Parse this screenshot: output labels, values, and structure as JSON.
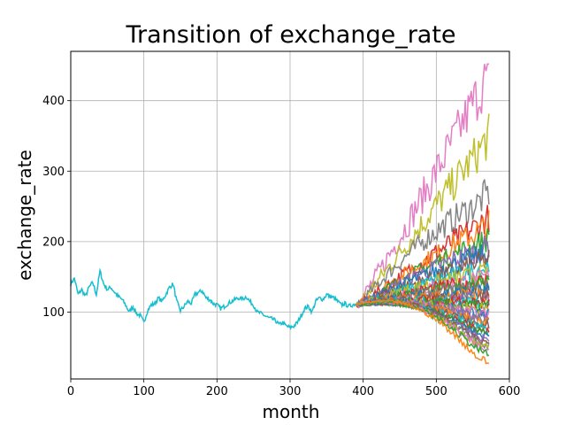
{
  "chart_data": {
    "type": "line",
    "title": "Transition of exchange_rate",
    "xlabel": "month",
    "ylabel": "exchange_rate",
    "xlim": [
      0,
      600
    ],
    "ylim": [
      5,
      470
    ],
    "x_ticks": [
      "0",
      "100",
      "200",
      "300",
      "400",
      "500",
      "600"
    ],
    "y_ticks": [
      "100",
      "200",
      "300",
      "400"
    ],
    "grid": true,
    "history": {
      "color": "#17becf",
      "x": [
        0,
        5,
        10,
        15,
        20,
        25,
        30,
        35,
        40,
        45,
        50,
        55,
        60,
        65,
        70,
        75,
        80,
        85,
        90,
        95,
        100,
        105,
        110,
        115,
        120,
        125,
        130,
        135,
        140,
        145,
        150,
        155,
        160,
        165,
        170,
        175,
        180,
        185,
        190,
        195,
        200,
        205,
        210,
        215,
        220,
        225,
        230,
        235,
        240,
        245,
        250,
        255,
        260,
        265,
        270,
        275,
        280,
        285,
        290,
        295,
        300,
        305,
        310,
        315,
        320,
        325,
        330,
        335,
        340,
        345,
        350,
        355,
        360,
        365,
        370,
        375,
        380,
        385,
        390
      ],
      "y": [
        140,
        148,
        125,
        132,
        122,
        135,
        142,
        125,
        158,
        140,
        132,
        135,
        128,
        122,
        118,
        110,
        100,
        108,
        98,
        95,
        85,
        102,
        110,
        112,
        120,
        115,
        125,
        135,
        140,
        115,
        102,
        108,
        115,
        112,
        125,
        128,
        130,
        120,
        118,
        112,
        110,
        105,
        108,
        112,
        115,
        118,
        120,
        118,
        122,
        115,
        110,
        100,
        98,
        95,
        92,
        90,
        88,
        82,
        85,
        80,
        78,
        80,
        85,
        95,
        105,
        108,
        100,
        115,
        120,
        118,
        125,
        122,
        120,
        115,
        110,
        112,
        108,
        110,
        112
      ]
    },
    "forecast": {
      "start_x": 390,
      "end_x": 572,
      "start_y": 110,
      "paths": [
        {
          "color": "#e377c2",
          "end": 440,
          "peak": 450
        },
        {
          "color": "#bcbd22",
          "end": 350,
          "peak": 365
        },
        {
          "color": "#7f7f7f",
          "end": 270,
          "peak": 305
        },
        {
          "color": "#d62728",
          "end": 235,
          "peak": 245
        },
        {
          "color": "#ff7f0e",
          "end": 225,
          "peak": 240
        },
        {
          "color": "#2ca02c",
          "end": 205,
          "peak": 220
        },
        {
          "color": "#9467bd",
          "end": 195,
          "peak": 210
        },
        {
          "color": "#1f77b4",
          "end": 185,
          "peak": 200
        },
        {
          "color": "#8c564b",
          "end": 175,
          "peak": 185
        },
        {
          "color": "#17becf",
          "end": 165,
          "peak": 175
        },
        {
          "color": "#bcbd22",
          "end": 158,
          "peak": 170
        },
        {
          "color": "#e377c2",
          "end": 150,
          "peak": 160
        },
        {
          "color": "#d62728",
          "end": 145,
          "peak": 155
        },
        {
          "color": "#2ca02c",
          "end": 140,
          "peak": 150
        },
        {
          "color": "#7f7f7f",
          "end": 135,
          "peak": 145
        },
        {
          "color": "#1f77b4",
          "end": 130,
          "peak": 140
        },
        {
          "color": "#ff7f0e",
          "end": 125,
          "peak": 135
        },
        {
          "color": "#9467bd",
          "end": 120,
          "peak": 130
        },
        {
          "color": "#8c564b",
          "end": 118,
          "peak": 128
        },
        {
          "color": "#17becf",
          "end": 115,
          "peak": 125
        },
        {
          "color": "#d62728",
          "end": 112,
          "peak": 122
        },
        {
          "color": "#2ca02c",
          "end": 108,
          "peak": 118
        },
        {
          "color": "#bcbd22",
          "end": 105,
          "peak": 115
        },
        {
          "color": "#1f77b4",
          "end": 100,
          "peak": 112
        },
        {
          "color": "#e377c2",
          "end": 96,
          "peak": 110
        },
        {
          "color": "#9467bd",
          "end": 92,
          "peak": 108
        },
        {
          "color": "#7f7f7f",
          "end": 88,
          "peak": 106
        },
        {
          "color": "#ff7f0e",
          "end": 84,
          "peak": 104
        },
        {
          "color": "#8c564b",
          "end": 80,
          "peak": 102
        },
        {
          "color": "#17becf",
          "end": 76,
          "peak": 100
        },
        {
          "color": "#d62728",
          "end": 72,
          "peak": 98
        },
        {
          "color": "#2ca02c",
          "end": 68,
          "peak": 96
        },
        {
          "color": "#1f77b4",
          "end": 64,
          "peak": 95
        },
        {
          "color": "#9467bd",
          "end": 60,
          "peak": 94
        },
        {
          "color": "#8c564b",
          "end": 56,
          "peak": 93
        },
        {
          "color": "#7f7f7f",
          "end": 52,
          "peak": 92
        },
        {
          "color": "#bcbd22",
          "end": 48,
          "peak": 91
        },
        {
          "color": "#e377c2",
          "end": 45,
          "peak": 90
        },
        {
          "color": "#2ca02c",
          "end": 40,
          "peak": 88
        },
        {
          "color": "#ff7f0e",
          "end": 28,
          "peak": 85
        }
      ]
    }
  }
}
